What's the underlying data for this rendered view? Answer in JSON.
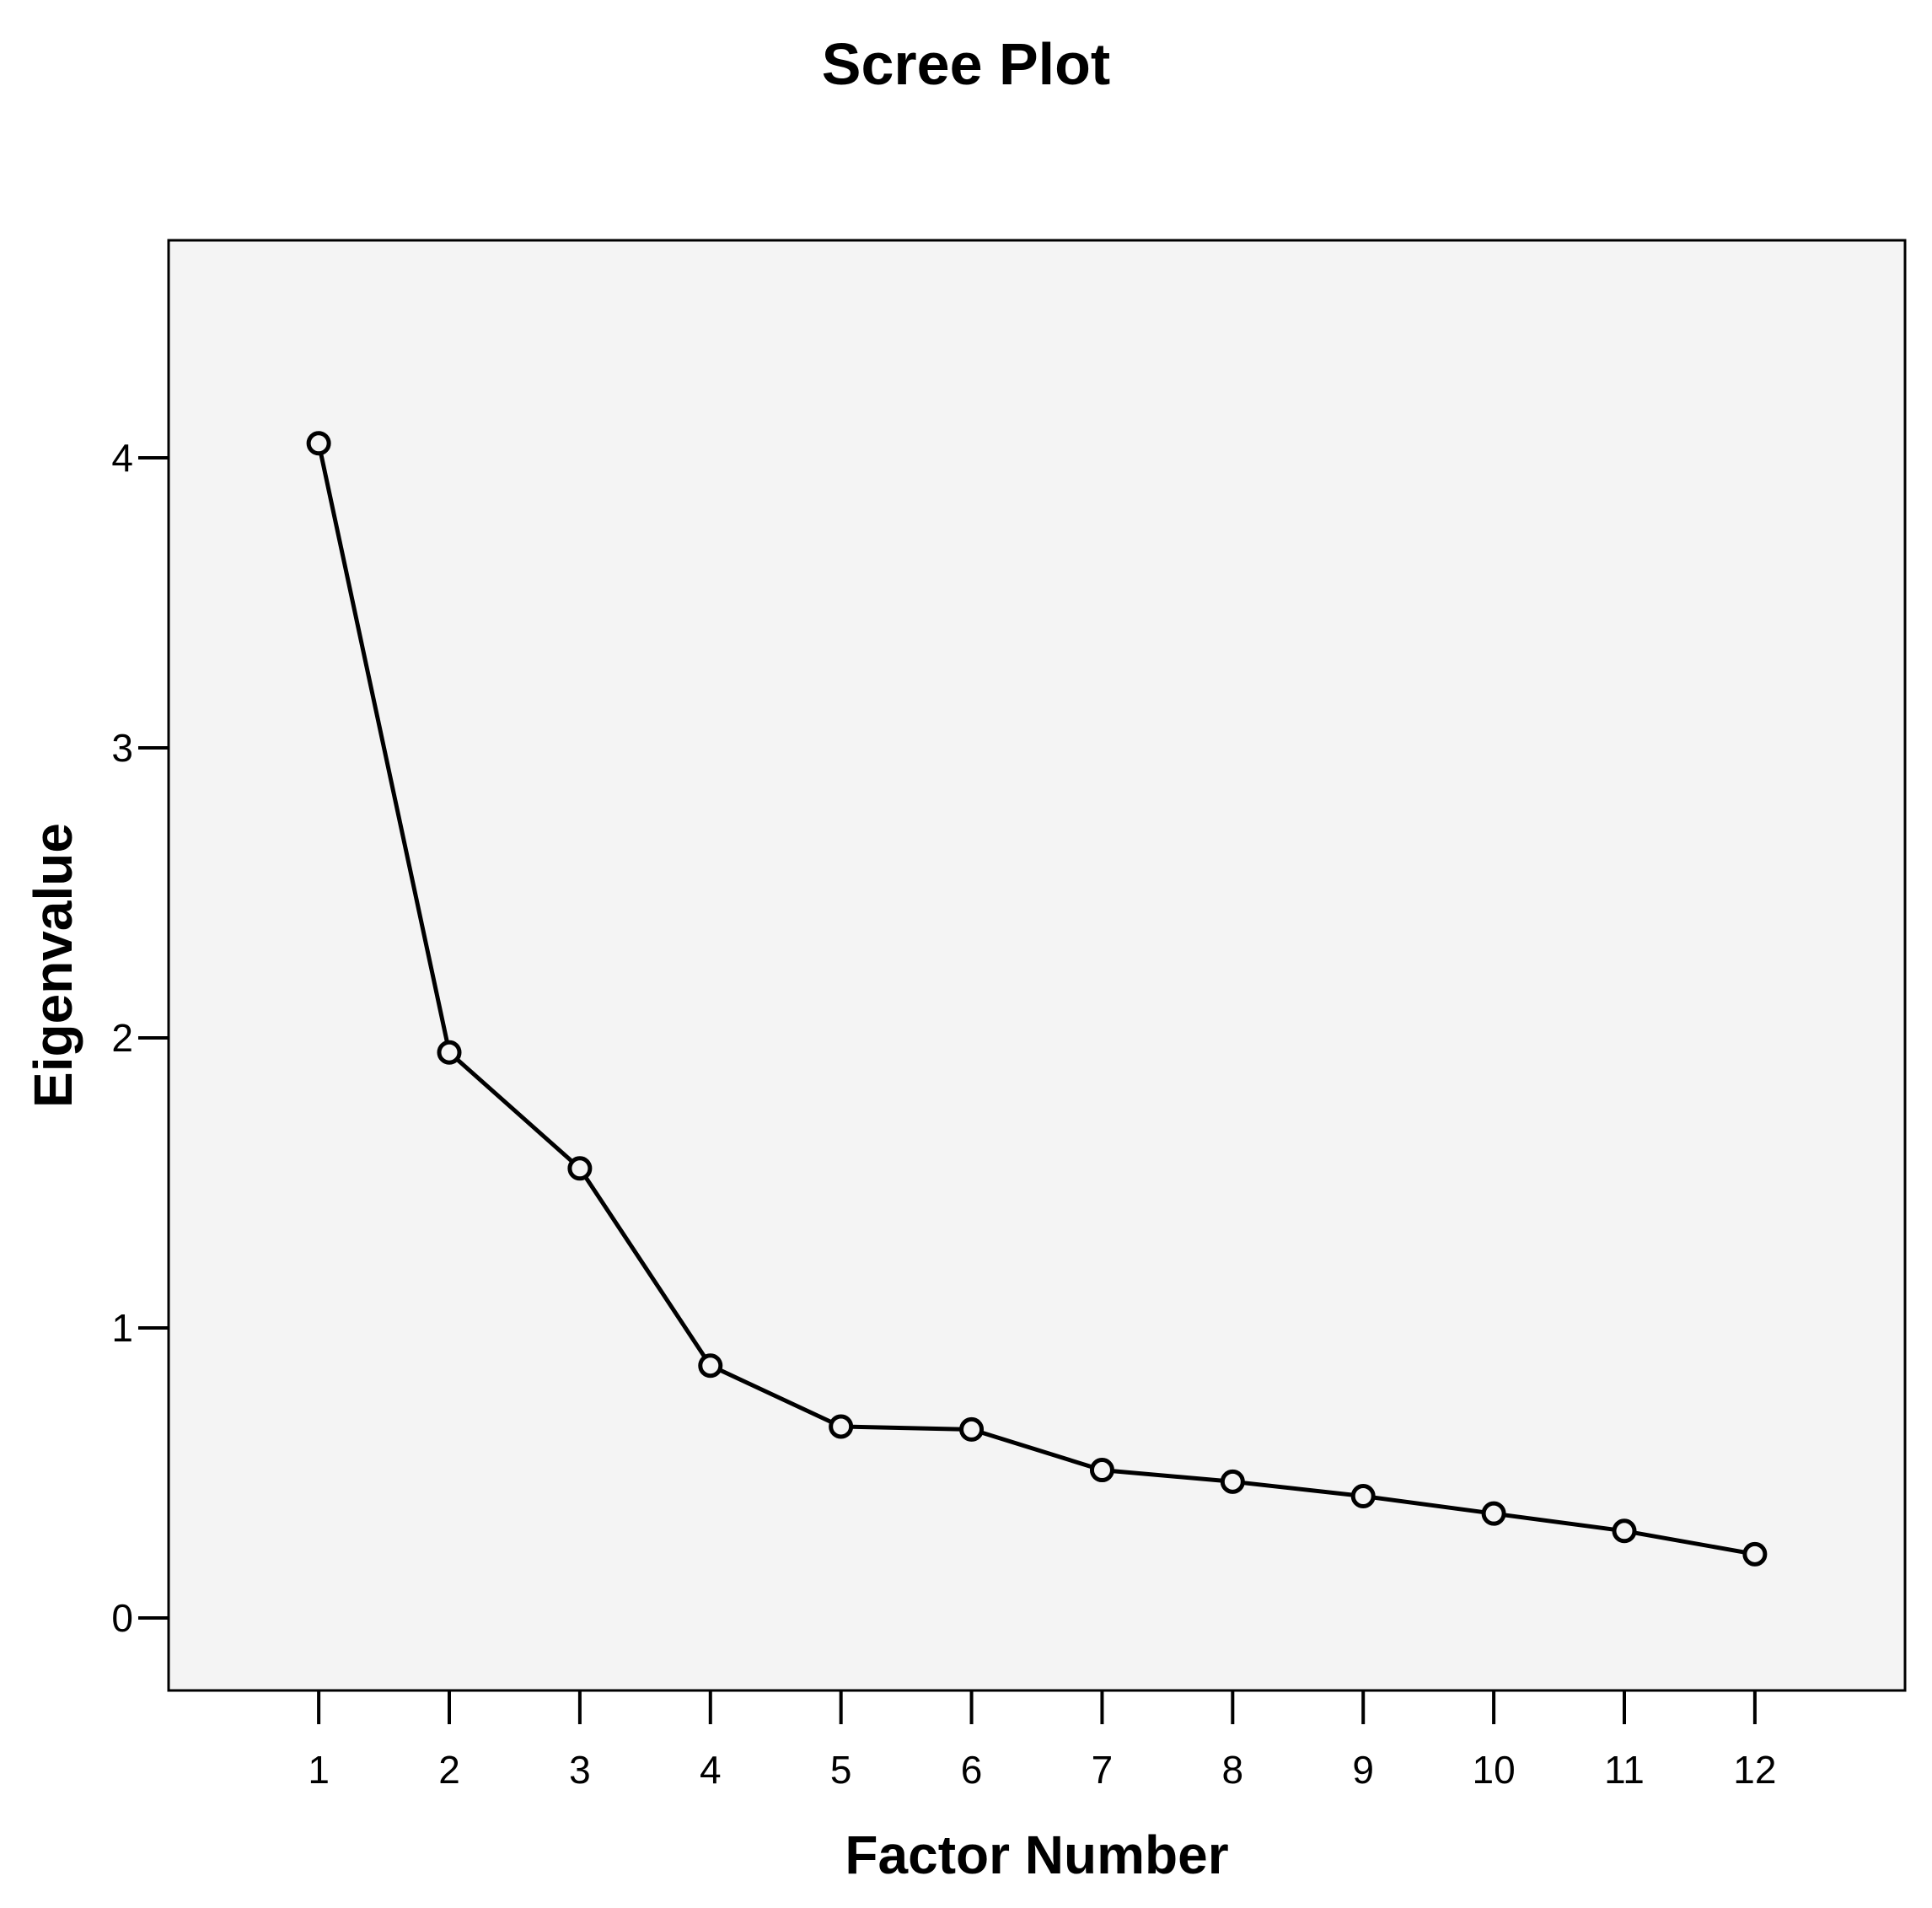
{
  "chart_data": {
    "type": "line",
    "title": "Scree Plot",
    "xlabel": "Factor Number",
    "ylabel": "Eigenvalue",
    "x": [
      1,
      2,
      3,
      4,
      5,
      6,
      7,
      8,
      9,
      10,
      11,
      12
    ],
    "series": [
      {
        "values": [
          4.05,
          1.95,
          1.55,
          0.87,
          0.66,
          0.65,
          0.51,
          0.47,
          0.42,
          0.36,
          0.3,
          0.22
        ]
      }
    ],
    "xticks": [
      "1",
      "2",
      "3",
      "4",
      "5",
      "6",
      "7",
      "8",
      "9",
      "10",
      "11",
      "12"
    ],
    "yticks": [
      "0",
      "1",
      "2",
      "3",
      "4"
    ],
    "ylim": [
      -0.25,
      4.75
    ],
    "xlim": [
      -0.15,
      13.15
    ],
    "grid": false,
    "marker": "open-circle",
    "colors": {
      "plot_background": "#f4f4f4",
      "line": "#000000",
      "page_background": "#ffffff"
    }
  }
}
